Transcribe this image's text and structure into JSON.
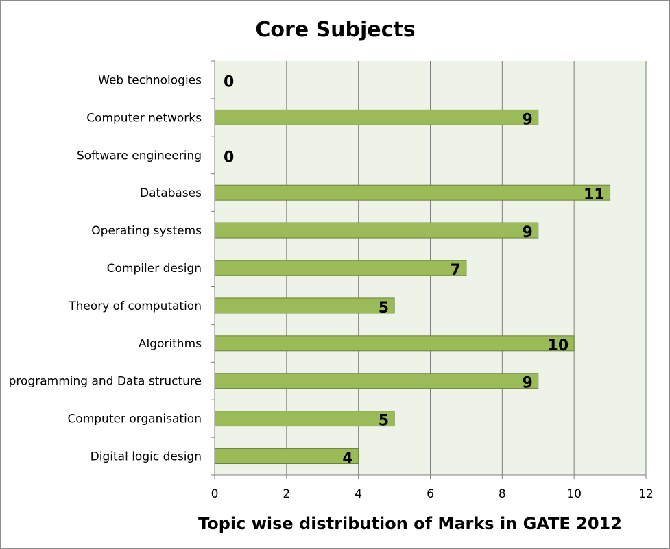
{
  "chart_data": {
    "type": "bar",
    "orientation": "horizontal",
    "title": "Core Subjects",
    "xlabel": "Topic wise distribution of Marks in GATE 2012",
    "ylabel": "",
    "categories": [
      "Digital logic design",
      "Computer organisation",
      "programming and Data structure",
      "Algorithms",
      "Theory of computation",
      "Compiler design",
      "Operating systems",
      "Databases",
      "Software engineering",
      "Computer networks",
      "Web technologies"
    ],
    "values": [
      4,
      5,
      9,
      10,
      5,
      7,
      9,
      11,
      0,
      9,
      0
    ],
    "xlim": [
      0,
      12
    ],
    "xticks": [
      "0",
      "2",
      "4",
      "6",
      "8",
      "10",
      "12"
    ],
    "grid": true,
    "legend": "none",
    "data_labels": true,
    "colors": {
      "bar_fill": "#9bbb59",
      "bar_stroke": "#6a7f3a",
      "plot_background": "#eef3e7",
      "gridline": "#7f7f7f"
    }
  }
}
